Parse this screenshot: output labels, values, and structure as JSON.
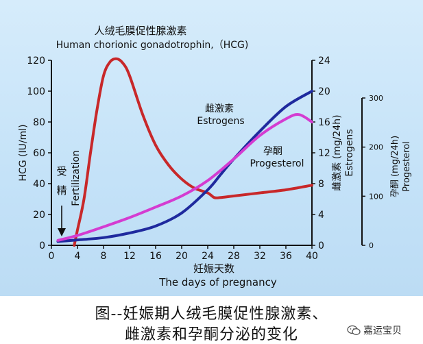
{
  "chart_data": {
    "type": "line",
    "title_zh": "人绒毛膜促性腺激素",
    "title_en": "Human chorionic gonadotrophin,（HCG)",
    "x": {
      "label_zh": "妊娠天数",
      "label_en": "The days of pregnancy",
      "range": [
        0,
        40
      ],
      "ticks": [
        0,
        4,
        8,
        12,
        16,
        20,
        24,
        28,
        32,
        36,
        40
      ]
    },
    "y_left": {
      "label": "HCG (IU/ml)",
      "range": [
        0,
        120
      ],
      "ticks": [
        0,
        20,
        40,
        60,
        80,
        100,
        120
      ]
    },
    "y_right1": {
      "label_zh": "雌激素 (mg/24h)",
      "label_en": "Estrogens",
      "range": [
        0,
        24
      ],
      "ticks": [
        0,
        4,
        8,
        12,
        16,
        20,
        24
      ]
    },
    "y_right2": {
      "label_zh": "孕酮 (mg/24h)",
      "label_en": "Progesterol",
      "range": [
        0,
        300
      ],
      "ticks": [
        0,
        100,
        200,
        300
      ]
    },
    "annotations": {
      "fertilization_zh": "受精",
      "fertilization_en": "Fertilization",
      "estrogen_zh": "雌激素",
      "estrogen_en": "Estrogens",
      "progesterone_zh": "孕酮",
      "progesterone_en": "Progesterol"
    },
    "series": [
      {
        "name": "HCG",
        "axis": "left",
        "color": "#c8282a",
        "x": [
          3.5,
          4,
          5,
          6,
          7,
          8,
          9,
          10,
          11,
          12,
          14,
          16,
          18,
          20,
          22,
          24,
          25,
          26,
          28,
          32,
          36,
          40
        ],
        "y": [
          0,
          10,
          30,
          60,
          88,
          110,
          119,
          121,
          118,
          110,
          85,
          65,
          52,
          43,
          37,
          34,
          31,
          31,
          32,
          34,
          36,
          39
        ]
      },
      {
        "name": "Estrogens",
        "axis": "right1",
        "color": "#1f2a9e",
        "x": [
          1,
          4,
          8,
          12,
          16,
          20,
          24,
          26,
          28,
          32,
          36,
          40
        ],
        "y": [
          0.5,
          0.7,
          1.0,
          1.6,
          2.5,
          4.2,
          7.2,
          9.2,
          11.2,
          14.8,
          18.0,
          20.0
        ]
      },
      {
        "name": "Progesterol",
        "axis": "right2",
        "color": "#d43cd1",
        "x": [
          1,
          4,
          8,
          12,
          16,
          20,
          24,
          28,
          32,
          36,
          38,
          40
        ],
        "y": [
          8,
          16,
          30,
          45,
          62,
          80,
          105,
          140,
          178,
          205,
          212,
          200
        ]
      }
    ]
  },
  "caption": {
    "line1": "图--妊娠期人绒毛膜促性腺激素、",
    "line2": "雌激素和孕酮分泌的变化"
  },
  "watermark": {
    "text": "嘉运宝贝"
  },
  "colors": {
    "hcg": "#c8282a",
    "estrogen": "#1f2a9e",
    "progesterone": "#d43cd1",
    "background": "#c7e3f8"
  }
}
